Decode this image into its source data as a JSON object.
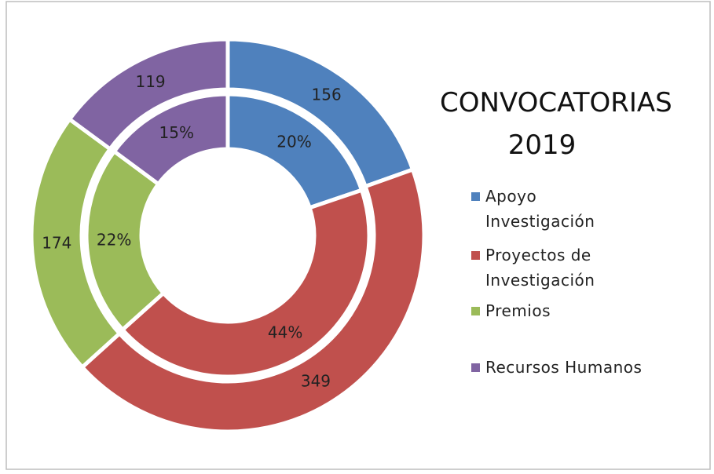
{
  "chart_data": {
    "type": "doughnut",
    "title": "CONVOCATORIAS 2019",
    "categories": [
      "Apoyo Investigación",
      "Proyectos de Investigación",
      "Premios",
      "Recursos Humanos"
    ],
    "colors": [
      "#4f81bd",
      "#c0504d",
      "#9bbb59",
      "#8064a2"
    ],
    "series": [
      {
        "values": [
          156,
          349,
          174,
          119
        ]
      },
      {
        "values": [
          20,
          44,
          22,
          15
        ],
        "value_labels": [
          "20%",
          "44%",
          "22%",
          "15%"
        ]
      }
    ],
    "legend": "right"
  }
}
